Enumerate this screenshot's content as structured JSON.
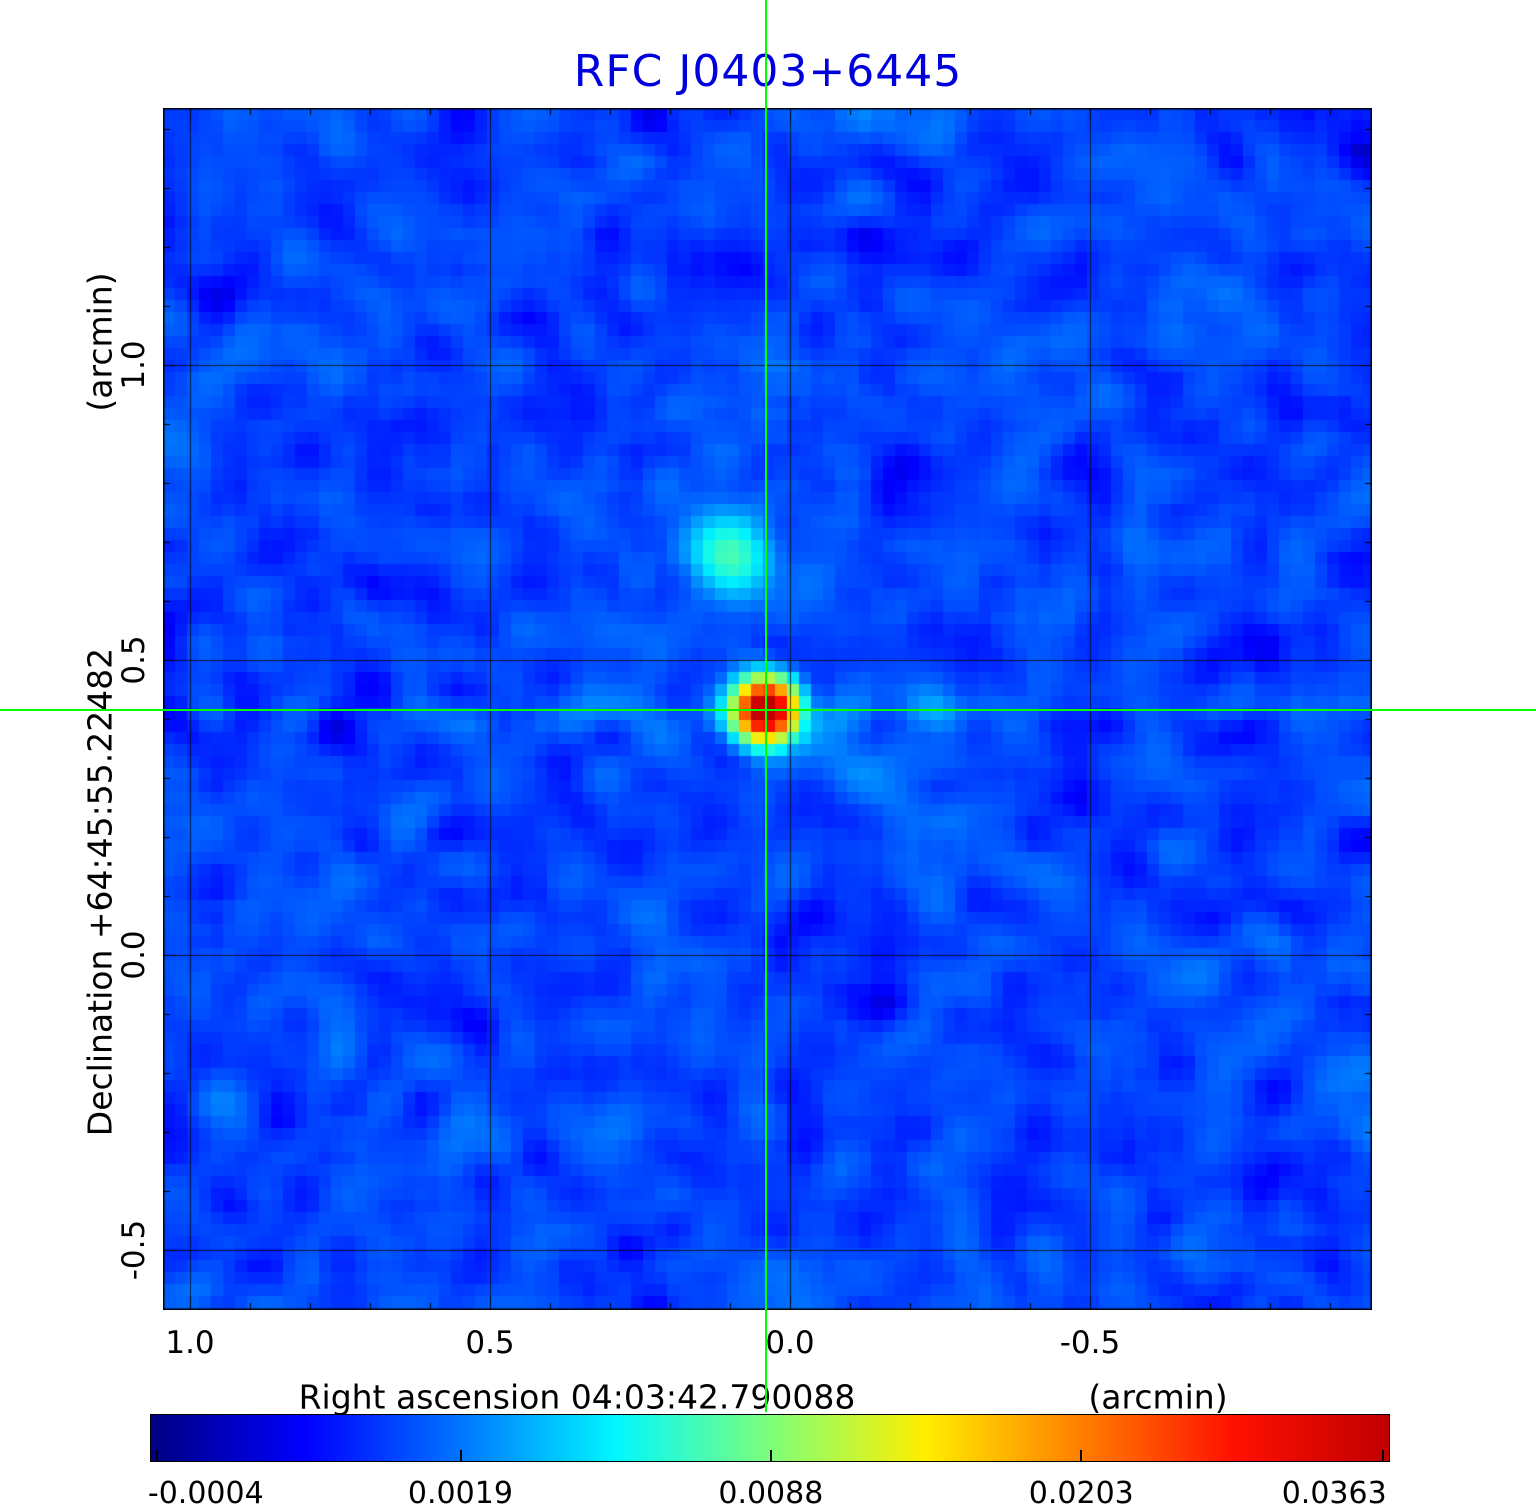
{
  "title": "RFC J0403+6445",
  "title_color": "#0000dd",
  "axes": {
    "y_unit_label": "(arcmin)",
    "y_axis_label": "Declination  +64:45:55.22482",
    "y_ticks": [
      "1.0",
      "0.5",
      "0.0",
      "-0.5"
    ],
    "x_ticks": [
      "1.0",
      "0.5",
      "0.0",
      "-0.5"
    ],
    "x_axis_label": "Right ascension  04:03:42.790088",
    "x_unit_label": "(arcmin)"
  },
  "colorbar": {
    "tick_labels": [
      "-0.0004",
      "0.0019",
      "0.0088",
      "0.0203",
      "0.0363"
    ],
    "stops": [
      {
        "t": 0.0,
        "c": "#000083"
      },
      {
        "t": 0.125,
        "c": "#0000ff"
      },
      {
        "t": 0.25,
        "c": "#0075ff"
      },
      {
        "t": 0.375,
        "c": "#00f7ff"
      },
      {
        "t": 0.5,
        "c": "#7dff7a"
      },
      {
        "t": 0.625,
        "c": "#ffee00"
      },
      {
        "t": 0.75,
        "c": "#ff8000"
      },
      {
        "t": 0.875,
        "c": "#ff1000"
      },
      {
        "t": 1.0,
        "c": "#c00000"
      }
    ]
  },
  "chart_data": {
    "type": "heatmap",
    "title": "RFC J0403+6445",
    "xlabel": "Right ascension 04:03:42.790088 (arcmin)",
    "ylabel": "Declination +64:45:55.22482 (arcmin)",
    "x_tick_values": [
      1.0,
      0.5,
      0.0,
      -0.5
    ],
    "y_tick_values": [
      1.0,
      0.5,
      0.0,
      -0.5
    ],
    "x_range": [
      1.045,
      -0.97
    ],
    "y_range": [
      1.435,
      -0.602
    ],
    "minor_tick_step": 0.1,
    "grid": true,
    "value_range": [
      -0.0004,
      0.0363
    ],
    "colorbar_ticks": [
      -0.0004,
      0.0019,
      0.0088,
      0.0203,
      0.0363
    ],
    "colormap": "jet",
    "scaling": "sqrt",
    "background": {
      "mean": 0.001,
      "rms": 0.0008
    },
    "sources": [
      {
        "x": 0.04,
        "y": 0.415,
        "peak": 0.04,
        "sigma_arcmin": 0.032
      },
      {
        "x": 0.1,
        "y": 0.68,
        "peak": 0.006,
        "sigma_arcmin": 0.045
      }
    ],
    "crosshair": {
      "x": 0.04,
      "y": 0.415,
      "color": "#00ff00"
    }
  }
}
